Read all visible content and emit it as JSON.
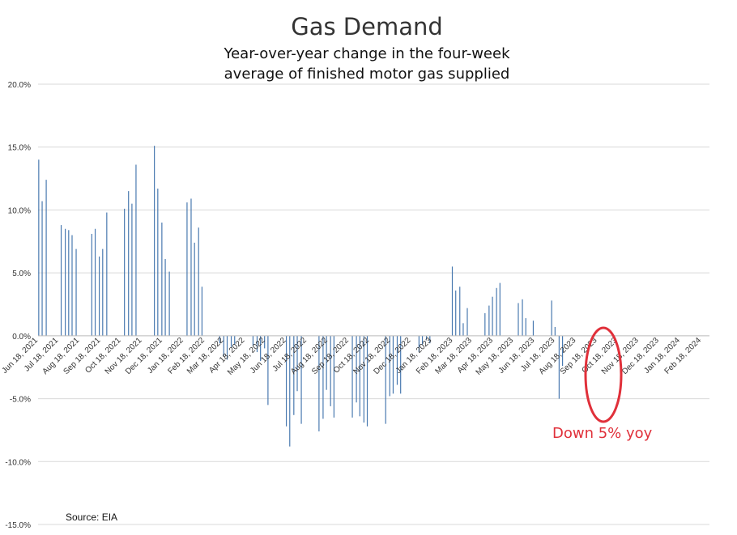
{
  "chart_data": {
    "type": "bar",
    "title": "Gas Demand",
    "subtitle_lines": [
      "Year-over-year change in the four-week",
      "average of finished motor gas supplied"
    ],
    "source": "Source: EIA",
    "annotation": "Down 5% yoy",
    "ylim": [
      -15,
      20
    ],
    "y_ticks": [
      20,
      15,
      10,
      5,
      0,
      -5,
      -10,
      -15
    ],
    "y_tick_labels": [
      "20.0%",
      "15.0%",
      "10.0%",
      "5.0%",
      "0.0%",
      "-5.0%",
      "-10.0%",
      "-15.0%"
    ],
    "x_date_range": [
      "2021-06-18",
      "2024-03-01"
    ],
    "x_tick_dates": [
      "2021-06-18",
      "2021-07-18",
      "2021-08-18",
      "2021-09-18",
      "2021-10-18",
      "2021-11-18",
      "2021-12-18",
      "2022-01-18",
      "2022-02-18",
      "2022-03-18",
      "2022-04-18",
      "2022-05-18",
      "2022-06-18",
      "2022-07-18",
      "2022-08-18",
      "2022-09-18",
      "2022-10-18",
      "2022-11-18",
      "2022-12-18",
      "2023-01-18",
      "2023-02-18",
      "2023-03-18",
      "2023-04-18",
      "2023-05-18",
      "2023-06-18",
      "2023-07-18",
      "2023-08-18",
      "2023-09-18",
      "2023-10-18",
      "2023-11-18",
      "2023-12-18",
      "2024-01-18",
      "2024-02-18"
    ],
    "x_tick_labels": [
      "Jun 18, 2021",
      "Jul 18, 2021",
      "Aug 18, 2021",
      "Sep 18, 2021",
      "Oct 18, 2021",
      "Nov 18, 2021",
      "Dec 18, 2021",
      "Jan 18, 2022",
      "Feb 18, 2022",
      "Mar 18, 2022",
      "Apr 18, 2022",
      "May 18, 2022",
      "Jun 18, 2022",
      "Jul 18, 2022",
      "Aug 18, 2022",
      "Sep 18, 2022",
      "Oct 18, 2022",
      "Nov 18, 2022",
      "Dec 18, 2022",
      "Jan 18, 2023",
      "Feb 18, 2023",
      "Mar 18, 2023",
      "Apr 18, 2023",
      "May 18, 2023",
      "Jun 18, 2023",
      "Jul 18, 2023",
      "Aug 18, 2023",
      "Sep 18, 2023",
      "Oct 18, 2023",
      "Nov 18, 2023",
      "Dec 18, 2023",
      "Jan 18, 2024",
      "Feb 18, 2024"
    ],
    "grid": true,
    "legend": "none",
    "series": [
      {
        "color": "#4a7ab0",
        "points": [
          [
            "2021-06-19",
            14.0
          ],
          [
            "2021-06-24",
            10.7
          ],
          [
            "2021-06-30",
            12.4
          ],
          [
            "2021-07-22",
            8.8
          ],
          [
            "2021-07-28",
            8.5
          ],
          [
            "2021-08-02",
            8.4
          ],
          [
            "2021-08-07",
            8.0
          ],
          [
            "2021-08-13",
            6.9
          ],
          [
            "2021-09-05",
            8.1
          ],
          [
            "2021-09-10",
            8.5
          ],
          [
            "2021-09-16",
            6.3
          ],
          [
            "2021-09-21",
            6.9
          ],
          [
            "2021-09-27",
            9.8
          ],
          [
            "2021-10-23",
            10.1
          ],
          [
            "2021-10-29",
            11.5
          ],
          [
            "2021-11-03",
            10.5
          ],
          [
            "2021-11-09",
            13.6
          ],
          [
            "2021-12-06",
            15.1
          ],
          [
            "2021-12-11",
            11.7
          ],
          [
            "2021-12-17",
            9.0
          ],
          [
            "2021-12-22",
            6.1
          ],
          [
            "2021-12-28",
            5.1
          ],
          [
            "2022-01-23",
            10.6
          ],
          [
            "2022-01-29",
            10.9
          ],
          [
            "2022-02-03",
            7.4
          ],
          [
            "2022-02-09",
            8.6
          ],
          [
            "2022-02-14",
            3.9
          ],
          [
            "2022-03-12",
            -0.6
          ],
          [
            "2022-03-18",
            -1.6
          ],
          [
            "2022-03-23",
            -1.9
          ],
          [
            "2022-03-29",
            -0.9
          ],
          [
            "2022-04-03",
            -0.7
          ],
          [
            "2022-04-30",
            -0.8
          ],
          [
            "2022-05-06",
            -1.3
          ],
          [
            "2022-05-11",
            -2.0
          ],
          [
            "2022-05-17",
            -1.0
          ],
          [
            "2022-05-22",
            -5.5
          ],
          [
            "2022-06-18",
            -7.2
          ],
          [
            "2022-06-23",
            -8.8
          ],
          [
            "2022-06-29",
            -6.3
          ],
          [
            "2022-07-04",
            -4.4
          ],
          [
            "2022-07-10",
            -7.0
          ],
          [
            "2022-08-05",
            -7.6
          ],
          [
            "2022-08-11",
            -6.6
          ],
          [
            "2022-08-16",
            -4.3
          ],
          [
            "2022-08-22",
            -5.6
          ],
          [
            "2022-08-27",
            -6.5
          ],
          [
            "2022-09-23",
            -6.5
          ],
          [
            "2022-09-29",
            -5.3
          ],
          [
            "2022-10-04",
            -6.4
          ],
          [
            "2022-10-10",
            -6.9
          ],
          [
            "2022-10-15",
            -7.2
          ],
          [
            "2022-11-11",
            -7.0
          ],
          [
            "2022-11-17",
            -4.8
          ],
          [
            "2022-11-22",
            -4.6
          ],
          [
            "2022-11-28",
            -3.9
          ],
          [
            "2022-12-03",
            -4.6
          ],
          [
            "2022-12-30",
            -1.3
          ],
          [
            "2023-01-04",
            -0.7
          ],
          [
            "2023-01-10",
            -0.3
          ],
          [
            "2023-01-15",
            -0.6
          ],
          [
            "2023-02-17",
            5.5
          ],
          [
            "2023-02-22",
            3.6
          ],
          [
            "2023-02-28",
            3.9
          ],
          [
            "2023-03-05",
            1.0
          ],
          [
            "2023-03-11",
            2.2
          ],
          [
            "2023-04-06",
            1.8
          ],
          [
            "2023-04-12",
            2.4
          ],
          [
            "2023-04-17",
            3.1
          ],
          [
            "2023-04-23",
            3.8
          ],
          [
            "2023-04-28",
            4.2
          ],
          [
            "2023-05-25",
            2.6
          ],
          [
            "2023-05-31",
            2.9
          ],
          [
            "2023-06-05",
            1.4
          ],
          [
            "2023-06-16",
            1.2
          ],
          [
            "2023-07-13",
            2.8
          ],
          [
            "2023-07-18",
            0.7
          ],
          [
            "2023-07-24",
            -5.0
          ],
          [
            "2023-07-29",
            -2.4
          ]
        ]
      }
    ]
  }
}
